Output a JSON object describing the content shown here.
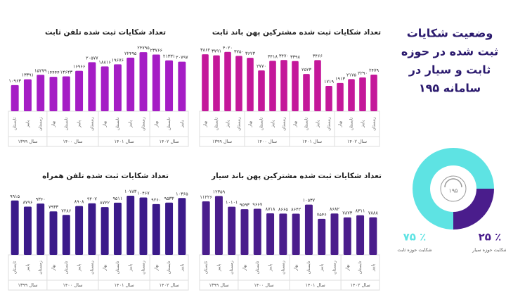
{
  "chart_data": [
    {
      "type": "bar",
      "title": "تعداد شکایات ثبت شده تلفن ثابت",
      "color": "#a51dc5",
      "categories": [
        "تابستان",
        "پاییز",
        "زمستان",
        "بهار",
        "تابستان",
        "پاییز",
        "زمستان",
        "بهار",
        "تابستان",
        "پاییز",
        "زمستان",
        "بهار",
        "تابستان",
        "پاییز"
      ],
      "groups": [
        {
          "name": "سال ۱۳۹۹",
          "size": 3
        },
        {
          "name": "سال ۱۴۰۰",
          "size": 4
        },
        {
          "name": "سال ۱۴۰۱",
          "size": 4
        },
        {
          "name": "سال ۱۴۰۲",
          "size": 3
        }
      ],
      "values": [
        10963,
        13391,
        15279,
        14444,
        14643,
        16966,
        20577,
        18816,
        19676,
        22495,
        24795,
        23766,
        21331,
        20797
      ],
      "value_labels": [
        "۱۰۹۶۳",
        "۱۳۳۹۱",
        "۱۵۲۷۹",
        "۱۴۴۴۴",
        "۱۴۶۴۳",
        "۱۶۹۶۶",
        "۲۰۵۷۷",
        "۱۸۸۱۶",
        "۱۹۶۷۶",
        "۲۲۴۹۵",
        "۲۴۷۹۵",
        "۲۳۷۶۶",
        "۲۱۳۳۱",
        "۲۰۷۹۷"
      ],
      "ylim": [
        0,
        26000
      ]
    },
    {
      "type": "bar",
      "title": "تعداد شکایات ثبت شده مشترکین پهن باند ثابت",
      "color": "#c4189a",
      "categories": [
        "بهار",
        "تابستان",
        "پاییز",
        "زمستان",
        "بهار",
        "تابستان",
        "پاییز",
        "زمستان",
        "بهار",
        "تابستان",
        "پاییز",
        "زمستان",
        "بهار",
        "تابستان",
        "پاییز",
        "زمستان"
      ],
      "groups": [
        {
          "name": "سال ۱۳۹۹",
          "size": 4
        },
        {
          "name": "سال ۱۴۰۰",
          "size": 4
        },
        {
          "name": "سال ۱۴۰۱",
          "size": 4
        },
        {
          "name": "سال ۱۴۰۲",
          "size": 4
        }
      ],
      "values": [
        3862,
        3791,
        4020,
        3750,
        3623,
        2770,
        3418,
        3470,
        3398,
        2523,
        3466,
        1719,
        1913,
        2175,
        2290,
        2479
      ],
      "value_labels": [
        "۳۸۶۲",
        "۳۷۹۱",
        "۴۰۲۰",
        "۳۷۵۰",
        "۳۶۲۳",
        "۲۷۷۰",
        "۳۴۱۸",
        "۳۴۷۰",
        "۳۳۹۸",
        "۲۵۲۳",
        "۳۴۶۶",
        "۱۷۱۹",
        "۱۹۱۳",
        "۲۱۷۵",
        "۲۲۹۰",
        "۲۴۷۹"
      ],
      "ylim": [
        0,
        4200
      ]
    },
    {
      "type": "bar",
      "title": "تعداد شکایات ثبت شده تلفن همراه",
      "color": "#3b1a8a",
      "categories": [
        "تابستان",
        "پاییز",
        "زمستان",
        "بهار",
        "تابستان",
        "پاییز",
        "زمستان",
        "بهار",
        "تابستان",
        "پاییز",
        "زمستان",
        "بهار",
        "تابستان",
        "پاییز"
      ],
      "groups": [
        {
          "name": "سال ۱۳۹۹",
          "size": 3
        },
        {
          "name": "سال ۱۴۰۰",
          "size": 4
        },
        {
          "name": "سال ۱۴۰۱",
          "size": 4
        },
        {
          "name": "سال ۱۴۰۲",
          "size": 3
        }
      ],
      "values": [
        9915,
        8796,
        9360,
        7933,
        7286,
        8908,
        9407,
        8722,
        9511,
        10783,
        10467,
        9260,
        9533,
        10365
      ],
      "value_labels": [
        "۹۹۱۵",
        "۸۷۹۶",
        "۹۳۶۰",
        "۷۹۳۳",
        "۷۲۸۶",
        "۸۹۰۸",
        "۹۴۰۷",
        "۸۷۲۲",
        "۹۵۱۱",
        "۱۰۷۸۳",
        "۱۰۴۶۷",
        "۹۲۶۰",
        "۹۵۳۳",
        "۱۰۳۶۵"
      ],
      "ylim": [
        0,
        11300
      ]
    },
    {
      "type": "bar",
      "title": "تعداد شکایات ثبت شده مشترکین پهن باند سیار",
      "color": "#4a1d8c",
      "categories": [
        "تابستان",
        "پاییز",
        "زمستان",
        "بهار",
        "تابستان",
        "پاییز",
        "زمستان",
        "بهار",
        "تابستان",
        "پاییز",
        "زمستان",
        "بهار",
        "تابستان",
        "پاییز"
      ],
      "groups": [
        {
          "name": "سال ۱۳۹۹",
          "size": 3
        },
        {
          "name": "سال ۱۴۰۰",
          "size": 4
        },
        {
          "name": "سال ۱۴۰۱",
          "size": 4
        },
        {
          "name": "سال ۱۴۰۲",
          "size": 3
        }
      ],
      "values": [
        11226,
        12359,
        10101,
        9593,
        9667,
        8718,
        8665,
        8642,
        10537,
        7546,
        8682,
        7873,
        8311,
        7888
      ],
      "value_labels": [
        "۱۱۲۲۶",
        "۱۲۳۵۹",
        "۱۰۱۰۱",
        "۹۵۹۳",
        "۹۶۶۷",
        "۸۷۱۸",
        "۸۶۶۵",
        "۸۶۴۲",
        "۱۰۵۳۷",
        "۷۵۴۶",
        "۸۶۸۲",
        "۷۸۷۳",
        "۸۳۱۱",
        "۷۸۸۸"
      ],
      "ylim": [
        0,
        13000
      ]
    },
    {
      "type": "pie",
      "title_lines": [
        "وضعیت شکایات",
        "ثبت شده در حوزه",
        "ثابت و سیار در",
        "سامانه ۱۹۵"
      ],
      "center_label": "۱۹۵",
      "categories": [
        "شکایت حوزه ثابت",
        "شکایت حوزه سیار"
      ],
      "values": [
        75,
        25
      ],
      "value_labels": [
        "۷۵ ٪",
        "۲۵ ٪"
      ],
      "colors": [
        "#5ee3e3",
        "#4a1d8c"
      ]
    }
  ]
}
